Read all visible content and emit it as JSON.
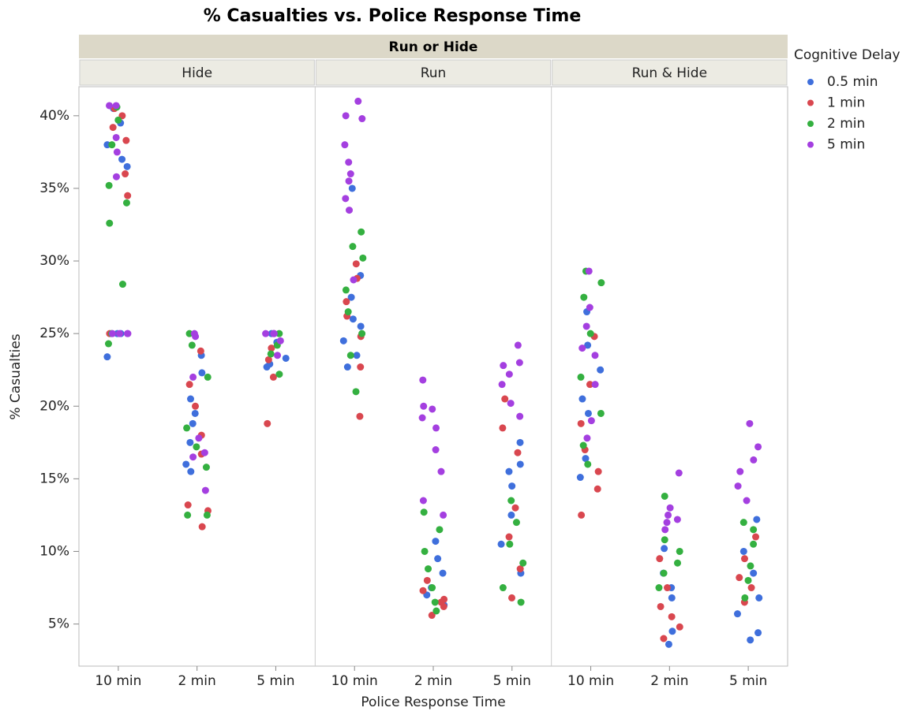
{
  "chart_data": {
    "type": "strip",
    "title": "% Casualties vs. Police Response Time",
    "facet_title": "Run or Hide",
    "panels": [
      "Hide",
      "Run",
      "Run & Hide"
    ],
    "categories": [
      "10 min",
      "2 min",
      "5 min"
    ],
    "x_label": "Police Response Time",
    "y_label": "% Casualties",
    "legend_title": "Cognitive Delay",
    "ylim": [
      2.1,
      42
    ],
    "yticks": [
      {
        "value": 5,
        "label": "5%"
      },
      {
        "value": 10,
        "label": "10%"
      },
      {
        "value": 15,
        "label": "15%"
      },
      {
        "value": 20,
        "label": "20%"
      },
      {
        "value": 25,
        "label": "25%"
      },
      {
        "value": 30,
        "label": "30%"
      },
      {
        "value": 35,
        "label": "35%"
      },
      {
        "value": 40,
        "label": "40%"
      }
    ],
    "series": [
      {
        "name": "0.5 min",
        "color": "#3f6fdc",
        "values": [
          [
            [
              23.4,
              25,
              36.5,
              38,
              39.5,
              40.5,
              37,
              25
            ],
            [
              15.5,
              17.5,
              18.8,
              20.5,
              22.3,
              23.5,
              16,
              19.5
            ],
            [
              22.7,
              23.3,
              24.4,
              25,
              22.9
            ]
          ],
          [
            [
              22.7,
              24.5,
              26,
              27.5,
              29,
              35,
              25.5,
              23.5
            ],
            [
              6.3,
              7.5,
              8.5,
              9.5,
              10.7,
              7
            ],
            [
              8.5,
              10.5,
              12.5,
              14.5,
              16,
              17.5,
              15.5
            ]
          ],
          [
            [
              15.1,
              16.4,
              20.5,
              22.5,
              24.2,
              26.5,
              19.5
            ],
            [
              3.6,
              4.5,
              6.8,
              8.5,
              10.2,
              7.5
            ],
            [
              3.9,
              4.4,
              5.7,
              6.8,
              8.5,
              10,
              12.2
            ]
          ]
        ]
      },
      {
        "name": "1 min",
        "color": "#d9474f",
        "values": [
          [
            [
              34.5,
              39.2,
              40.5,
              36,
              38.3,
              25,
              40
            ],
            [
              11.7,
              13.2,
              16.7,
              18,
              20,
              21.5,
              23.8,
              12.8
            ],
            [
              18.8,
              22,
              23.2,
              24,
              25
            ]
          ],
          [
            [
              19.3,
              22.7,
              24.8,
              26.2,
              27.2,
              28.8,
              29.8
            ],
            [
              5.6,
              6.2,
              6.7,
              7.3,
              8,
              6.5
            ],
            [
              6.8,
              8.8,
              11,
              13,
              16.8,
              18.5,
              20.5
            ]
          ],
          [
            [
              12.5,
              14.3,
              15.5,
              17,
              18.8,
              21.5,
              24.8
            ],
            [
              4,
              4.8,
              5.5,
              6.2,
              7.5,
              9.5
            ],
            [
              6.5,
              7.5,
              8.2,
              9.5,
              11
            ]
          ]
        ]
      },
      {
        "name": "2 min",
        "color": "#34b040",
        "values": [
          [
            [
              24.3,
              28.4,
              32.6,
              34,
              35.2,
              38,
              39.7,
              40.6,
              25
            ],
            [
              12.5,
              12.5,
              15.8,
              17.2,
              18.5,
              22,
              24.2,
              25
            ],
            [
              22.2,
              23.6,
              24.2,
              25
            ]
          ],
          [
            [
              21,
              23.5,
              25,
              26.5,
              28,
              30.2,
              31,
              32
            ],
            [
              5.9,
              6.5,
              7.5,
              8.8,
              10,
              11.5,
              12.7
            ],
            [
              6.5,
              7.5,
              9.2,
              10.5,
              12,
              13.5
            ]
          ],
          [
            [
              16,
              17.3,
              19.5,
              22,
              25,
              27.5,
              29.3,
              28.5
            ],
            [
              7.5,
              8.5,
              9.2,
              10,
              10.8,
              13.8
            ],
            [
              6.8,
              8,
              9,
              10.5,
              11.5,
              12
            ]
          ]
        ]
      },
      {
        "name": "5 min",
        "color": "#a43fe0",
        "values": [
          [
            [
              25,
              25,
              25,
              35.8,
              37.5,
              38.5,
              40.7,
              40.7,
              25
            ],
            [
              14.2,
              16.8,
              17.8,
              22,
              24.8,
              25,
              16.5
            ],
            [
              23.5,
              24.5,
              25,
              25,
              25
            ]
          ],
          [
            [
              28.7,
              33.5,
              35.5,
              36.8,
              38,
              39.8,
              41,
              36,
              34.3,
              40
            ],
            [
              12.5,
              13.5,
              15.5,
              17,
              18.5,
              19.2,
              20,
              21.8,
              19.8
            ],
            [
              19.3,
              20.2,
              21.5,
              22.2,
              23,
              24.2,
              22.8
            ]
          ],
          [
            [
              17.8,
              19,
              21.5,
              23.5,
              25.5,
              26.8,
              29.3,
              24
            ],
            [
              11.5,
              12,
              12.5,
              13,
              15.4,
              12.2
            ],
            [
              13.5,
              14.5,
              15.5,
              16.3,
              17.2,
              18.8
            ]
          ]
        ]
      }
    ]
  }
}
